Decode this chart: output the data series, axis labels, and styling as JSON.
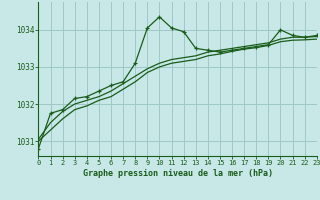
{
  "title": "Graphe pression niveau de la mer (hPa)",
  "background_color": "#c8e8e8",
  "plot_bg_color": "#c8e8e8",
  "grid_color": "#a0c8c8",
  "line_color": "#1a5c1a",
  "xlim": [
    0,
    23
  ],
  "ylim": [
    1030.6,
    1034.75
  ],
  "yticks": [
    1031,
    1032,
    1033,
    1034
  ],
  "xticks": [
    0,
    1,
    2,
    3,
    4,
    5,
    6,
    7,
    8,
    9,
    10,
    11,
    12,
    13,
    14,
    15,
    16,
    17,
    18,
    19,
    20,
    21,
    22,
    23
  ],
  "series1_x": [
    0,
    1,
    2,
    3,
    4,
    5,
    6,
    7,
    8,
    9,
    10,
    11,
    12,
    13,
    14,
    15,
    16,
    17,
    18,
    19,
    20,
    21,
    22,
    23
  ],
  "series1_y": [
    1030.8,
    1031.75,
    1031.85,
    1032.15,
    1032.2,
    1032.35,
    1032.5,
    1032.6,
    1033.1,
    1034.05,
    1034.35,
    1034.05,
    1033.95,
    1033.5,
    1033.45,
    1033.4,
    1033.45,
    1033.5,
    1033.55,
    1033.6,
    1034.0,
    1033.85,
    1033.8,
    1033.85
  ],
  "series2_x": [
    0,
    1,
    2,
    3,
    4,
    5,
    6,
    7,
    8,
    9,
    10,
    11,
    12,
    13,
    14,
    15,
    16,
    17,
    18,
    19,
    20,
    21,
    22,
    23
  ],
  "series2_y": [
    1031.05,
    1031.5,
    1031.8,
    1032.0,
    1032.1,
    1032.2,
    1032.35,
    1032.55,
    1032.75,
    1032.95,
    1033.1,
    1033.2,
    1033.25,
    1033.3,
    1033.4,
    1033.45,
    1033.5,
    1033.55,
    1033.6,
    1033.65,
    1033.75,
    1033.8,
    1033.8,
    1033.82
  ],
  "series3_x": [
    0,
    1,
    2,
    3,
    4,
    5,
    6,
    7,
    8,
    9,
    10,
    11,
    12,
    13,
    14,
    15,
    16,
    17,
    18,
    19,
    20,
    21,
    22,
    23
  ],
  "series3_y": [
    1031.0,
    1031.3,
    1031.6,
    1031.85,
    1031.95,
    1032.1,
    1032.2,
    1032.4,
    1032.6,
    1032.85,
    1033.0,
    1033.1,
    1033.15,
    1033.2,
    1033.3,
    1033.35,
    1033.42,
    1033.48,
    1033.52,
    1033.58,
    1033.68,
    1033.72,
    1033.73,
    1033.75
  ]
}
